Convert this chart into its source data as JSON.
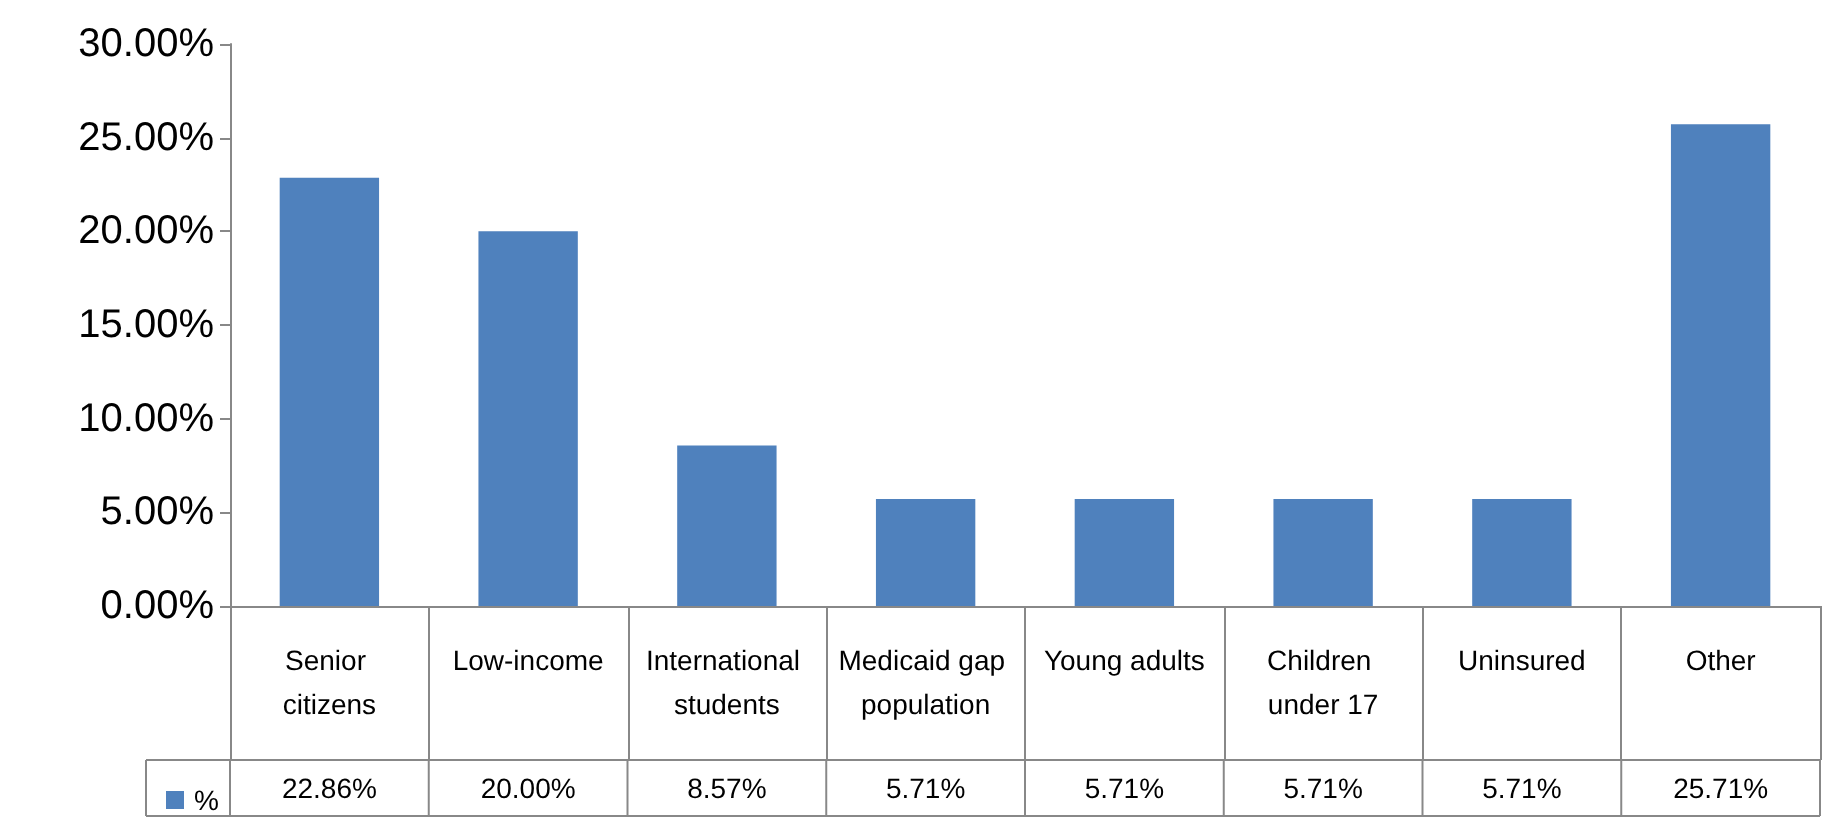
{
  "chart_data": {
    "type": "bar",
    "categories": [
      "Senior citizens",
      "Low-income",
      "International students",
      "Medicaid gap population",
      "Young adults",
      "Children under 17",
      "Uninsured",
      "Other"
    ],
    "series": [
      {
        "name": "%",
        "color": "#4f81bd",
        "values": [
          22.86,
          20.0,
          8.57,
          5.71,
          5.71,
          5.71,
          5.71,
          25.71
        ],
        "value_labels": [
          "22.86%",
          "20.00%",
          "8.57%",
          "5.71%",
          "5.71%",
          "5.71%",
          "5.71%",
          "25.71%"
        ]
      }
    ],
    "ylim": [
      0,
      30
    ],
    "yticks": [
      {
        "value": 0,
        "label": "0.00%"
      },
      {
        "value": 5,
        "label": "5.00%"
      },
      {
        "value": 10,
        "label": "10.00%"
      },
      {
        "value": 15,
        "label": "15.00%"
      },
      {
        "value": 20,
        "label": "20.00%"
      },
      {
        "value": 25,
        "label": "25.00%"
      },
      {
        "value": 30,
        "label": "30.00%"
      }
    ],
    "grid": false,
    "legend": "bottom left"
  }
}
